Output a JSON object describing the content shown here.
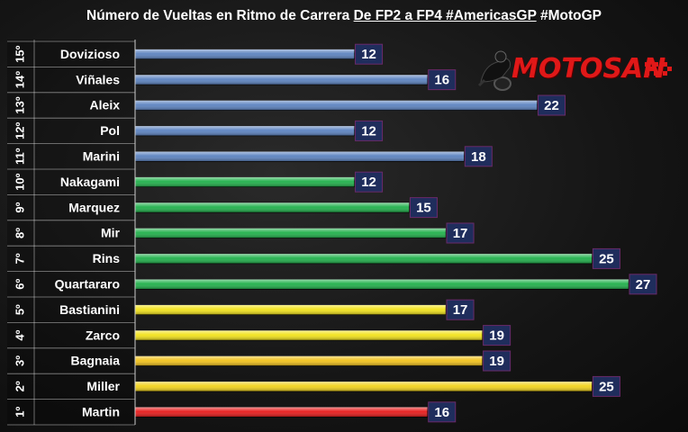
{
  "title": {
    "part1": "Número de Vueltas en Ritmo de Carrera ",
    "part2": "De FP2 a FP4 #AmericasGP",
    "part3": " #MotoGP"
  },
  "logo": {
    "text": "MOTOSAN",
    "icon": "motorcycle-rider-icon",
    "brand_color": "#e01818"
  },
  "chart_data": {
    "type": "bar",
    "orientation": "horizontal",
    "positions": [
      "15º",
      "14º",
      "13º",
      "12º",
      "11º",
      "10º",
      "9º",
      "8º",
      "7º",
      "6º",
      "5º",
      "4º",
      "3º",
      "2º",
      "1º"
    ],
    "categories": [
      "Dovizioso",
      "Viñales",
      "Aleix",
      "Pol",
      "Marini",
      "Nakagami",
      "Marquez",
      "Mir",
      "Rins",
      "Quartararo",
      "Bastianini",
      "Zarco",
      "Bagnaia",
      "Miller",
      "Martin"
    ],
    "values": [
      12,
      16,
      22,
      12,
      18,
      12,
      15,
      17,
      25,
      27,
      17,
      19,
      19,
      25,
      16
    ],
    "bar_colors": [
      "#5b82c0",
      "#5b82c0",
      "#5b82c0",
      "#5b82c0",
      "#5b82c0",
      "#1fb04a",
      "#1fb04a",
      "#1fb04a",
      "#1fb04a",
      "#1fb04a",
      "#f2e21a",
      "#f2e21a",
      "#f2c21a",
      "#f2d21a",
      "#e81a1a"
    ],
    "label_box_color": "#1f2d5c",
    "xlim": [
      0,
      27
    ],
    "grid": false,
    "legend": "none"
  }
}
